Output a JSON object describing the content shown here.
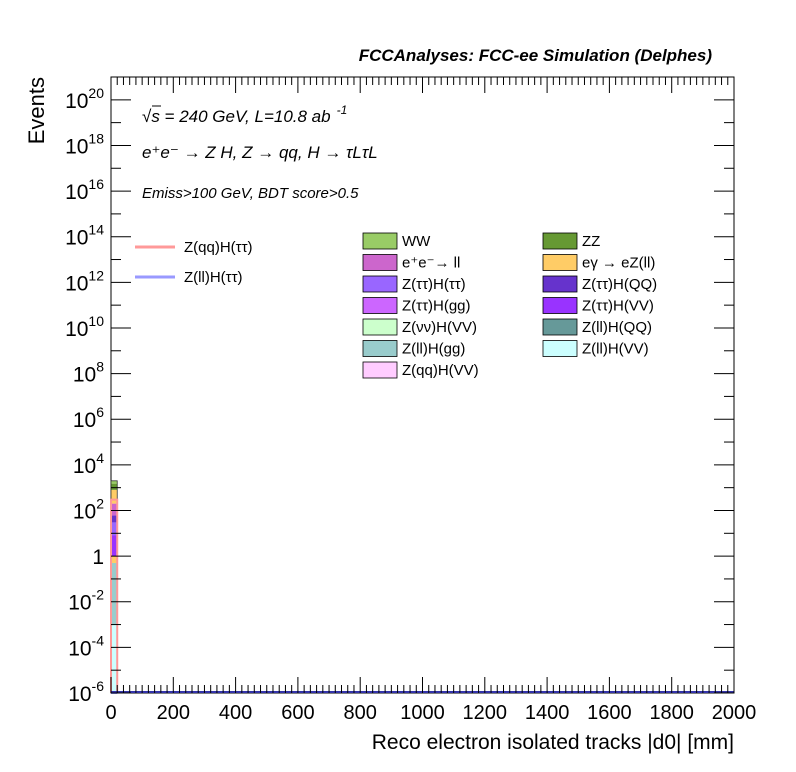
{
  "header": {
    "title": "FCCAnalyses: FCC-ee Simulation (Delphes)"
  },
  "annotations": {
    "energy": "√s = 240 GeV, L=10.8 ab",
    "energy_exp": "-1",
    "process": "e⁺e⁻ → Z H, Z → qq, H → τLτL",
    "cuts": "Emiss>100 GeV, BDT score>0.5"
  },
  "legend": {
    "lines": [
      {
        "label": "Z(qq)H(ττ)",
        "color": "#ff9999"
      },
      {
        "label": "Z(ll)H(ττ)",
        "color": "#9999ff"
      }
    ],
    "boxes": [
      {
        "label": "WW",
        "color": "#99cc66"
      },
      {
        "label": "ZZ",
        "color": "#669933"
      },
      {
        "label": "e⁺e⁻→ ll",
        "color": "#cc66cc"
      },
      {
        "label": "eγ → eZ(ll)",
        "color": "#ffcc66"
      },
      {
        "label": "Z(ττ)H(ττ)",
        "color": "#9966ff"
      },
      {
        "label": "Z(ττ)H(QQ)",
        "color": "#6633cc"
      },
      {
        "label": "Z(ττ)H(gg)",
        "color": "#cc66ff"
      },
      {
        "label": "Z(ττ)H(VV)",
        "color": "#9933ff"
      },
      {
        "label": "Z(νν)H(VV)",
        "color": "#ccffcc"
      },
      {
        "label": "Z(ll)H(QQ)",
        "color": "#669999"
      },
      {
        "label": "Z(ll)H(gg)",
        "color": "#99cccc"
      },
      {
        "label": "Z(ll)H(VV)",
        "color": "#ccffff"
      },
      {
        "label": "Z(qq)H(VV)",
        "color": "#ffccff"
      }
    ]
  },
  "chart_data": {
    "type": "bar",
    "xlabel": "Reco electron isolated tracks |d0| [mm]",
    "ylabel": "Events",
    "xlim": [
      0,
      2000
    ],
    "ylim": [
      1e-06,
      1e+21
    ],
    "yscale": "log",
    "x_ticks": [
      "0",
      "200",
      "400",
      "600",
      "800",
      "1000",
      "1200",
      "1400",
      "1600",
      "1800",
      "2000"
    ],
    "y_ticks": [
      {
        "value": 1e-06,
        "base": "10",
        "exp": "-6"
      },
      {
        "value": 0.0001,
        "base": "10",
        "exp": "-4"
      },
      {
        "value": 0.01,
        "base": "10",
        "exp": "-2"
      },
      {
        "value": 1,
        "base": "1",
        "exp": ""
      },
      {
        "value": 100.0,
        "base": "10",
        "exp": "2"
      },
      {
        "value": 10000.0,
        "base": "10",
        "exp": "4"
      },
      {
        "value": 1000000.0,
        "base": "10",
        "exp": "6"
      },
      {
        "value": 100000000.0,
        "base": "10",
        "exp": "8"
      },
      {
        "value": 10000000000.0,
        "base": "10",
        "exp": "10"
      },
      {
        "value": 1000000000000.0,
        "base": "10",
        "exp": "12"
      },
      {
        "value": 100000000000000.0,
        "base": "10",
        "exp": "14"
      },
      {
        "value": 1e+16,
        "base": "10",
        "exp": "16"
      },
      {
        "value": 1e+18,
        "base": "10",
        "exp": "18"
      },
      {
        "value": 1e+20,
        "base": "10",
        "exp": "20"
      }
    ],
    "bin": [
      0,
      20
    ],
    "stack": [
      {
        "name": "Z(ll)H(VV)",
        "low": 1e-06,
        "high": 0.001,
        "color": "#ccffff"
      },
      {
        "name": "Z(ll)H(gg)",
        "low": 0.001,
        "high": 0.5,
        "color": "#99cccc"
      },
      {
        "name": "eγ → eZ(ll)",
        "low": 0.5,
        "high": 1.0,
        "color": "#ffcc66"
      },
      {
        "name": "Z(ττ)H(VV)",
        "low": 1.0,
        "high": 8.0,
        "color": "#9933ff"
      },
      {
        "name": "Z(ττ)H(ττ)",
        "low": 8.0,
        "high": 30.0,
        "color": "#9966ff"
      },
      {
        "name": "Z(ττ)H(QQ)",
        "low": 30.0,
        "high": 60.0,
        "color": "#6633cc"
      },
      {
        "name": "e⁺e⁻→ ll",
        "low": 60.0,
        "high": 200.0,
        "color": "#cc66cc"
      },
      {
        "name": "eγ → eZ(ll)",
        "low": 200.0,
        "high": 800.0,
        "color": "#ffcc66"
      },
      {
        "name": "ZZ",
        "low": 800.0,
        "high": 1500.0,
        "color": "#669933"
      },
      {
        "name": "WW",
        "low": 1500.0,
        "high": 2000.0,
        "color": "#99cc66"
      }
    ],
    "signals": [
      {
        "name": "Z(qq)H(ττ)",
        "value": 300,
        "color": "#ff9999"
      },
      {
        "name": "Z(ll)H(ττ)",
        "value": 1e-06,
        "color": "#9999ff"
      }
    ]
  }
}
